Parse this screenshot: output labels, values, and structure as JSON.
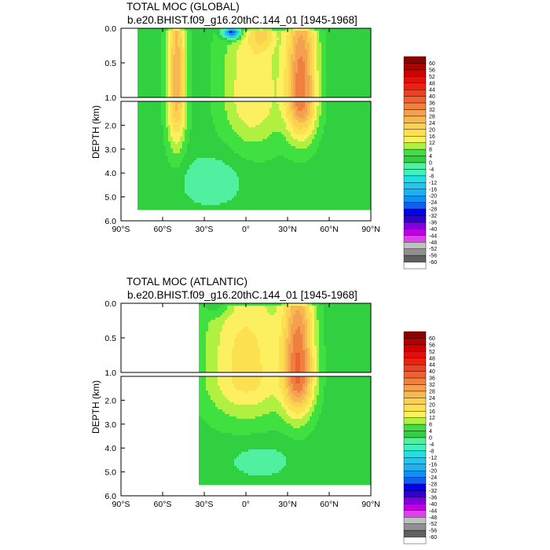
{
  "chart_data": [
    {
      "type": "heatmap",
      "title": "TOTAL MOC (GLOBAL)",
      "subtitle": "b.e20.BHIST.f09_g16.20thC.144_01 [1945-1968]",
      "ylabel": "DEPTH (km)",
      "xlabel": "",
      "x_ticks": [
        "90°S",
        "60°S",
        "30°S",
        "0°",
        "30°N",
        "60°N",
        "90°N"
      ],
      "x_tick_values": [
        -90,
        -60,
        -30,
        0,
        30,
        60,
        90
      ],
      "y_ticks_upper": [
        "0.0",
        "0.5",
        "1.0"
      ],
      "y_ticks_lower": [
        "2.0",
        "3.0",
        "4.0",
        "5.0",
        "6.0"
      ],
      "ylim_upper": [
        0,
        1.0
      ],
      "ylim_lower": [
        1.0,
        6.0
      ],
      "xlim": [
        -90,
        90
      ],
      "lat_range": [
        -78,
        90
      ],
      "bottom_depth": 5.5,
      "features": [
        {
          "lat": 40,
          "depth": 0.9,
          "amp": 32,
          "sx": 11,
          "sy": 1.6
        },
        {
          "lat": -50,
          "depth": 0.7,
          "amp": 24,
          "sx": 7,
          "sy": 2.2
        },
        {
          "lat": 5,
          "depth": 0.9,
          "amp": 14,
          "sx": 22,
          "sy": 2.0
        },
        {
          "lat": -10,
          "depth": 0.05,
          "amp": -38,
          "sx": 6,
          "sy": 0.1
        },
        {
          "lat": 12,
          "depth": 0.1,
          "amp": 10,
          "sx": 8,
          "sy": 0.2
        },
        {
          "lat": -25,
          "depth": 4.3,
          "amp": -6,
          "sx": 22,
          "sy": 1.0
        }
      ]
    },
    {
      "type": "heatmap",
      "title": "TOTAL MOC (ATLANTIC)",
      "subtitle": "b.e20.BHIST.f09_g16.20thC.144_01 [1945-1968]",
      "ylabel": "DEPTH (km)",
      "xlabel": "",
      "x_ticks": [
        "90°S",
        "60°S",
        "30°S",
        "0°",
        "30°N",
        "60°N",
        "90°N"
      ],
      "x_tick_values": [
        -90,
        -60,
        -30,
        0,
        30,
        60,
        90
      ],
      "y_ticks_upper": [
        "0.0",
        "0.5",
        "1.0"
      ],
      "y_ticks_lower": [
        "2.0",
        "3.0",
        "4.0",
        "5.0",
        "6.0"
      ],
      "ylim_upper": [
        0,
        1.0
      ],
      "ylim_lower": [
        1.0,
        6.0
      ],
      "xlim": [
        -90,
        90
      ],
      "lat_range": [
        -34,
        90
      ],
      "bottom_depth": 5.5,
      "features": [
        {
          "lat": 38,
          "depth": 1.0,
          "amp": 32,
          "sx": 11,
          "sy": 1.6
        },
        {
          "lat": 0,
          "depth": 1.0,
          "amp": 16,
          "sx": 30,
          "sy": 1.8
        },
        {
          "lat": -20,
          "depth": 0.05,
          "amp": -6,
          "sx": 10,
          "sy": 0.15
        },
        {
          "lat": 10,
          "depth": 4.5,
          "amp": -4,
          "sx": 25,
          "sy": 0.8
        }
      ]
    }
  ],
  "colorbar": {
    "levels": [
      "60",
      "56",
      "52",
      "48",
      "44",
      "40",
      "36",
      "32",
      "28",
      "24",
      "20",
      "16",
      "12",
      "8",
      "4",
      "0",
      "-4",
      "-8",
      "-12",
      "-16",
      "-20",
      "-24",
      "-28",
      "-32",
      "-36",
      "-40",
      "-44",
      "-48",
      "-52",
      "-56",
      "-60"
    ],
    "colors": [
      "#8b0000",
      "#b00000",
      "#d00000",
      "#e01010",
      "#f02010",
      "#f04020",
      "#f06030",
      "#f08040",
      "#f4a050",
      "#f8b850",
      "#fcd050",
      "#fce050",
      "#fcf060",
      "#b0f040",
      "#40e040",
      "#30d040",
      "#50f0a0",
      "#40f0c0",
      "#20e0e0",
      "#20c8f0",
      "#20b0f0",
      "#1090f0",
      "#1060f0",
      "#0000f0",
      "#3000d0",
      "#8000e0",
      "#c000e0",
      "#e040f0",
      "#c0c0c0",
      "#909090",
      "#606060",
      "#ffffff"
    ]
  }
}
